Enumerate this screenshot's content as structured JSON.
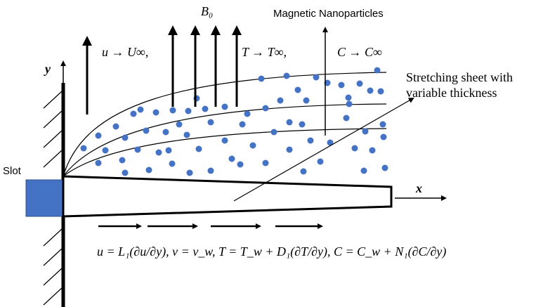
{
  "field_labels": {
    "magnetic_field": "B₀",
    "particles": "Magnetic Nanoparticles",
    "free_stream_u": "u → U∞,",
    "free_stream_t": "T → T∞,",
    "free_stream_c": "C → C∞"
  },
  "sheet_label": [
    "Stretching sheet with",
    "variable thickness"
  ],
  "axes": {
    "y": "y",
    "x": "x"
  },
  "slot": "Slot",
  "boundary_conditions": "u = L₁(∂u/∂y), v = v_w, T = T_w + D₁(∂T/∂y), C = C_w + N₁(∂C/∂y)"
}
